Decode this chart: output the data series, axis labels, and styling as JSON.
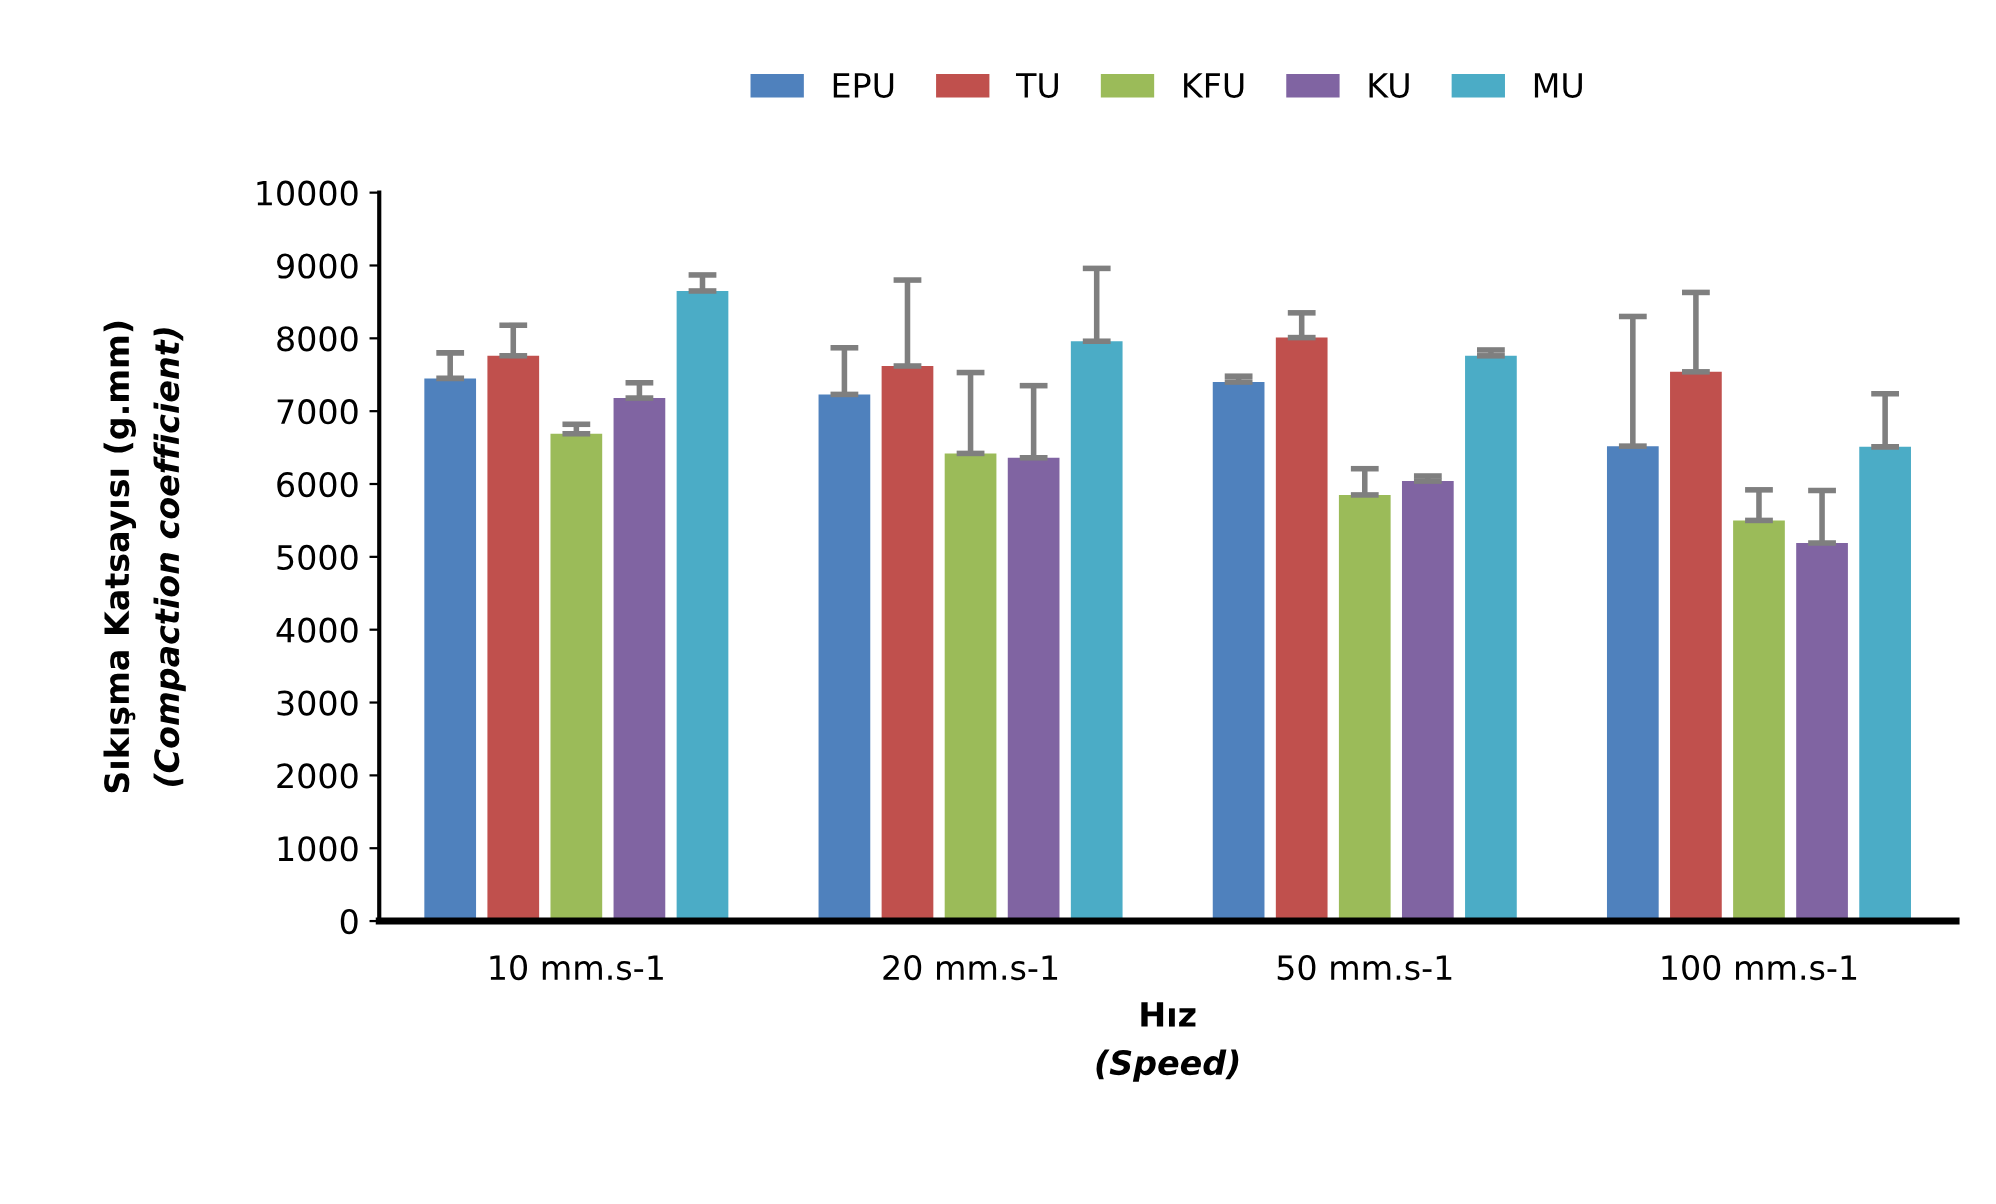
{
  "chart_data": {
    "type": "bar",
    "xlabel": "Hız\n(Speed)",
    "ylabel": "Sıkışma Katsayısı (g.mm)\n(Compaction coefficient)",
    "categories": [
      "10 mm.s-1",
      "20 mm.s-1",
      "50 mm.s-1",
      "100 mm.s-1"
    ],
    "series": [
      {
        "name": "EPU",
        "color": "#4f81bd",
        "values": [
          7450,
          7230,
          7400,
          6520
        ],
        "errors": [
          [
            7450,
            7800
          ],
          [
            7230,
            7870
          ],
          [
            7400,
            7480
          ],
          [
            6520,
            8300
          ]
        ]
      },
      {
        "name": "TU",
        "color": "#c0504d",
        "values": [
          7760,
          7620,
          8010,
          7540
        ],
        "errors": [
          [
            7760,
            8180
          ],
          [
            7620,
            8800
          ],
          [
            8010,
            8350
          ],
          [
            7540,
            8630
          ]
        ]
      },
      {
        "name": "KFU",
        "color": "#9bbb59",
        "values": [
          6690,
          6420,
          5850,
          5500
        ],
        "errors": [
          [
            6690,
            6820
          ],
          [
            6420,
            7530
          ],
          [
            5850,
            6210
          ],
          [
            5500,
            5920
          ]
        ]
      },
      {
        "name": "KU",
        "color": "#8064a2",
        "values": [
          7180,
          6360,
          6040,
          5190
        ],
        "errors": [
          [
            7180,
            7390
          ],
          [
            6360,
            7350
          ],
          [
            6040,
            6110
          ],
          [
            5190,
            5910
          ]
        ]
      },
      {
        "name": "MU",
        "color": "#4bacc6",
        "values": [
          8650,
          7960,
          7760,
          6510
        ],
        "errors": [
          [
            8650,
            8870
          ],
          [
            7960,
            8960
          ],
          [
            7760,
            7840
          ],
          [
            6510,
            7240
          ]
        ]
      }
    ],
    "ylim": [
      0,
      10000
    ],
    "yticks": [
      0,
      1000,
      2000,
      3000,
      4000,
      5000,
      6000,
      7000,
      8000,
      9000,
      10000
    ],
    "grid": false,
    "legend": "top"
  }
}
